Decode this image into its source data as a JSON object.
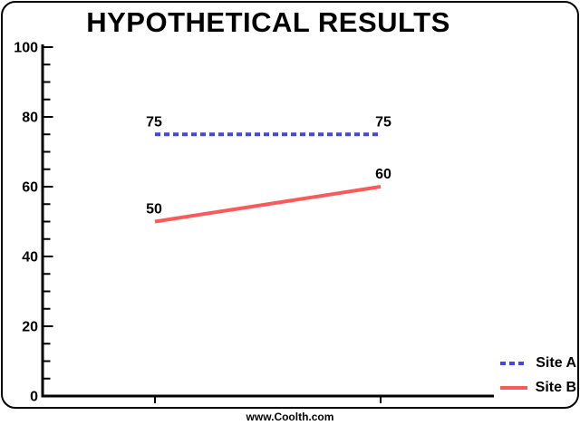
{
  "chart_data": {
    "type": "line",
    "title": "HYPOTHETICAL RESULTS",
    "categories": [
      "",
      ""
    ],
    "series": [
      {
        "name": "Site A",
        "values": [
          75,
          75
        ],
        "color": "#4646dc",
        "style": "dashed"
      },
      {
        "name": "Site B",
        "values": [
          50,
          60
        ],
        "color": "#fa5a5a",
        "style": "solid"
      }
    ],
    "data_labels": true,
    "xlabel": "",
    "ylabel": "",
    "ylim": [
      0,
      100
    ],
    "y_major_step": 20,
    "y_minor_step": 5,
    "y_tick_labels": [
      "0",
      "20",
      "40",
      "60",
      "80",
      "100"
    ],
    "grid": false,
    "legend_position": "bottom-right",
    "axis_color": "#000000",
    "background_color": "#ffffff",
    "footer": "www.Coolth.com"
  }
}
